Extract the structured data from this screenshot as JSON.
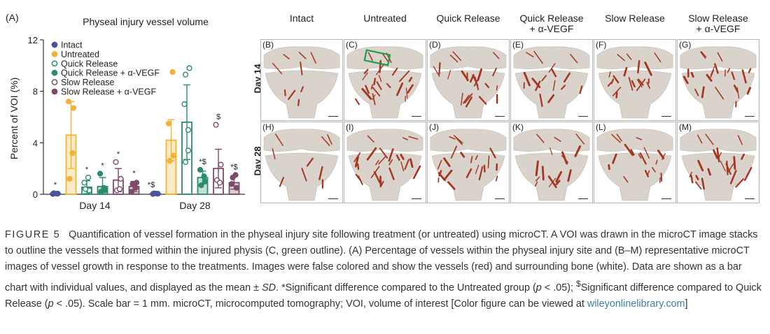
{
  "figure": {
    "panel_a_label": "(A)",
    "column_headers": [
      {
        "line1": "Intact",
        "line2": ""
      },
      {
        "line1": "Untreated",
        "line2": ""
      },
      {
        "line1": "Quick Release",
        "line2": ""
      },
      {
        "line1": "Quick Release",
        "line2": "+ α-VEGF"
      },
      {
        "line1": "Slow Release",
        "line2": ""
      },
      {
        "line1": "Slow Release",
        "line2": "+ α-VEGF"
      }
    ],
    "row_headers": [
      "Day 14",
      "Day 28"
    ],
    "panel_labels": [
      [
        "(B)",
        "(C)",
        "(D)",
        "(E)",
        "(F)",
        "(G)"
      ],
      [
        "(H)",
        "(I)",
        "(J)",
        "(K)",
        "(L)",
        "(M)"
      ]
    ],
    "colors": {
      "intact": "#4a5596",
      "untreated": "#f2b233",
      "quick": "#2a8c6b",
      "slow": "#7d4a6a",
      "vessel": "#a3351f",
      "bone": "#d9d3cc",
      "roi": "#1a9e4a"
    }
  },
  "chart_data": {
    "type": "bar",
    "title": "Physeal injury vessel volume",
    "ylabel": "Percent of VOI (%)",
    "xlabel": "",
    "ylim": [
      0,
      12
    ],
    "yticks": [
      "0",
      "4",
      "8",
      "12"
    ],
    "categories": [
      "Day 14",
      "Day 28"
    ],
    "legend_position": "top-left",
    "series": [
      {
        "name": "Intact",
        "fill": "solid",
        "color": "#4a5596",
        "values": [
          0.05,
          0.05
        ],
        "sd": [
          0.05,
          0.05
        ],
        "points": [
          [
            0.02,
            0.05,
            0.08,
            0.04
          ],
          [
            0.02,
            0.04,
            0.07,
            0.05
          ]
        ],
        "annotations": [
          "*",
          "*$"
        ]
      },
      {
        "name": "Untreated",
        "fill": "solid",
        "color": "#f2b233",
        "values": [
          4.6,
          4.2
        ],
        "sd": [
          2.6,
          1.6
        ],
        "points": [
          [
            7.2,
            6.7,
            1.2,
            3.2
          ],
          [
            5.5,
            3.0,
            2.6,
            9.5
          ]
        ],
        "annotations": [
          "",
          ""
        ]
      },
      {
        "name": "Quick Release",
        "fill": "open",
        "color": "#2a8c6b",
        "values": [
          0.55,
          5.6
        ],
        "sd": [
          0.5,
          2.9
        ],
        "points": [
          [
            0.9,
            0.3,
            0.4,
            1.3
          ],
          [
            7.0,
            9.8,
            9.3,
            3.4,
            2.5,
            5.0
          ]
        ],
        "annotations": [
          "*",
          ""
        ]
      },
      {
        "name": "Quick Release + α-VEGF",
        "fill": "solid",
        "color": "#2a8c6b",
        "values": [
          0.6,
          1.3
        ],
        "sd": [
          0.7,
          0.5
        ],
        "points": [
          [
            1.6,
            0.3,
            0.2,
            0.5
          ],
          [
            1.9,
            1.0,
            0.7,
            1.4
          ]
        ],
        "annotations": [
          "*",
          "*$"
        ]
      },
      {
        "name": "Slow Release",
        "fill": "open",
        "color": "#7d4a6a",
        "values": [
          1.1,
          2.0
        ],
        "sd": [
          0.9,
          1.5
        ],
        "points": [
          [
            2.5,
            1.2,
            0.3,
            0.4
          ],
          [
            5.4,
            2.3,
            1.1,
            0.9
          ]
        ],
        "annotations": [
          "*",
          "$"
        ]
      },
      {
        "name": "Slow Release + α-VEGF",
        "fill": "solid",
        "color": "#7d4a6a",
        "values": [
          0.6,
          0.9
        ],
        "sd": [
          0.4,
          0.5
        ],
        "points": [
          [
            0.2,
            0.9,
            0.8,
            0.5
          ],
          [
            0.8,
            0.5,
            1.3,
            1.5
          ]
        ],
        "annotations": [
          "*",
          "*$"
        ]
      }
    ]
  },
  "caption": {
    "figure_label": "FIGURE 5",
    "text_main": "Quantification of vessel formation in the physeal injury site following treatment (or untreated) using microCT. A VOI was drawn in the microCT image stacks to outline the vessels that formed within the injured physis (C, green outline). (A) Percentage of vessels within the physeal injury site and (B–M) representative microCT images of vessel growth in response to the treatments. Images were false colored and show the vessels (red) and surrounding bone (white). Data are shown as a bar chart with individual values, and displayed as the mean ± ",
    "sd_italic": "SD",
    "text_sig1": ". *Significant difference compared to the Untreated group (",
    "p_italic_1": "p",
    "text_p1": " < .05); ",
    "dollar_sup": "$",
    "text_sig2": "Significant difference compared to Quick Release (",
    "p_italic_2": "p",
    "text_p2": " < .05). Scale bar = 1 mm. microCT, microcomputed tomography; VOI, volume of interest [Color figure can be viewed at ",
    "link_text": "wileyonlinelibrary.com",
    "text_end": "]"
  }
}
